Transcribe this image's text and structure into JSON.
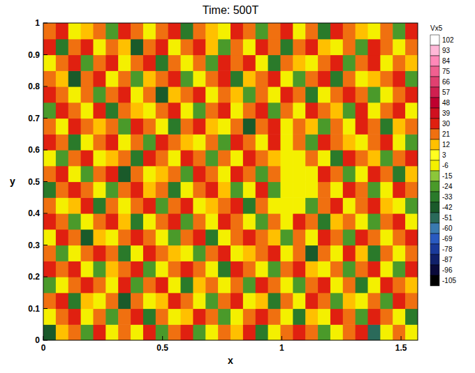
{
  "chart_data": {
    "type": "heatmap",
    "title": "Time: 500T",
    "x_label": "x",
    "y_label": "y",
    "xlim": [
      0,
      1.57
    ],
    "ylim": [
      0,
      1
    ],
    "xticks": [
      0,
      0.5,
      1,
      1.5
    ],
    "yticks": [
      0,
      0.1,
      0.2,
      0.3,
      0.4,
      0.5,
      0.6,
      0.7,
      0.8,
      0.9,
      1
    ],
    "colorbar": {
      "title": "Vx5",
      "ticks": [
        -105,
        -96,
        -87,
        -78,
        -69,
        -60,
        -51,
        -42,
        -33,
        -24,
        -15,
        -6,
        3,
        12,
        21,
        30,
        39,
        48,
        57,
        66,
        75,
        84,
        93,
        102
      ],
      "colors": [
        "#000000",
        "#0a0a3a",
        "#10206a",
        "#1a3a9a",
        "#2a5ac0",
        "#3a7ab0",
        "#2a6a5a",
        "#1a5a2a",
        "#2a7a2a",
        "#4a9a2a",
        "#8cc63a",
        "#f4f000",
        "#ffff20",
        "#ffc000",
        "#f07010",
        "#e02010",
        "#d01020",
        "#c00030",
        "#d02050",
        "#e04070",
        "#f06090",
        "#ff88b8",
        "#ffb8d8",
        "#ffffff"
      ]
    },
    "cells": [
      [
        -40,
        15,
        25,
        -18,
        33,
        0,
        25,
        0,
        33,
        -18,
        25,
        33,
        -18,
        0,
        25,
        15,
        33,
        -28,
        0,
        25,
        33,
        25,
        -18,
        0,
        25,
        33,
        -50,
        0,
        25,
        0
      ],
      [
        0,
        25,
        33,
        0,
        25,
        -18,
        25,
        33,
        -28,
        25,
        0,
        15,
        33,
        25,
        -18,
        0,
        25,
        33,
        25,
        0,
        -28,
        15,
        0,
        33,
        25,
        -18,
        33,
        25,
        0,
        -28
      ],
      [
        25,
        33,
        -28,
        15,
        0,
        25,
        -40,
        25,
        0,
        15,
        33,
        25,
        0,
        -18,
        25,
        33,
        0,
        15,
        -28,
        25,
        0,
        33,
        25,
        -18,
        15,
        0,
        25,
        -18,
        33,
        25
      ],
      [
        -18,
        0,
        25,
        33,
        25,
        0,
        33,
        -18,
        25,
        33,
        0,
        -28,
        15,
        25,
        0,
        25,
        -18,
        33,
        25,
        0,
        -18,
        25,
        33,
        0,
        25,
        -28,
        0,
        33,
        25,
        15
      ],
      [
        33,
        25,
        33,
        0,
        -18,
        15,
        25,
        33,
        -18,
        0,
        25,
        33,
        25,
        0,
        -28,
        33,
        25,
        0,
        -18,
        25,
        33,
        15,
        0,
        25,
        -18,
        25,
        33,
        0,
        -18,
        33
      ],
      [
        25,
        -18,
        0,
        25,
        33,
        25,
        -28,
        0,
        33,
        25,
        15,
        0,
        -18,
        25,
        33,
        0,
        15,
        25,
        33,
        0,
        25,
        -40,
        25,
        0,
        33,
        15,
        -28,
        25,
        0,
        25
      ],
      [
        0,
        33,
        25,
        -40,
        15,
        0,
        25,
        33,
        25,
        0,
        -18,
        25,
        33,
        -28,
        0,
        25,
        33,
        25,
        15,
        -18,
        25,
        0,
        33,
        25,
        -18,
        33,
        25,
        0,
        25,
        33
      ],
      [
        33,
        25,
        -18,
        0,
        25,
        33,
        15,
        -28,
        0,
        25,
        33,
        -18,
        25,
        0,
        33,
        25,
        0,
        -18,
        25,
        0,
        33,
        25,
        -28,
        15,
        25,
        0,
        -18,
        25,
        33,
        0
      ],
      [
        25,
        0,
        15,
        33,
        -28,
        25,
        0,
        25,
        33,
        -18,
        25,
        33,
        0,
        15,
        25,
        33,
        -28,
        25,
        0,
        0,
        0,
        -18,
        25,
        33,
        0,
        25,
        33,
        15,
        0,
        -18
      ],
      [
        -28,
        25,
        33,
        25,
        0,
        -18,
        25,
        33,
        15,
        25,
        -28,
        0,
        25,
        33,
        15,
        -18,
        0,
        33,
        -18,
        0,
        0,
        0,
        25,
        0,
        33,
        25,
        -18,
        0,
        33,
        25
      ],
      [
        25,
        33,
        0,
        -18,
        25,
        33,
        -40,
        25,
        0,
        15,
        25,
        -18,
        33,
        25,
        0,
        33,
        25,
        -18,
        25,
        0,
        0,
        0,
        33,
        25,
        -18,
        0,
        33,
        25,
        -28,
        15
      ],
      [
        0,
        -18,
        25,
        33,
        0,
        15,
        25,
        -28,
        33,
        25,
        0,
        33,
        25,
        -18,
        25,
        0,
        33,
        25,
        15,
        0,
        0,
        25,
        0,
        -28,
        33,
        25,
        15,
        -18,
        25,
        33
      ],
      [
        33,
        25,
        -28,
        0,
        25,
        33,
        0,
        25,
        -18,
        33,
        25,
        15,
        0,
        25,
        -18,
        33,
        25,
        0,
        33,
        0,
        25,
        -18,
        33,
        25,
        15,
        0,
        25,
        33,
        0,
        -18
      ],
      [
        25,
        0,
        33,
        25,
        15,
        25,
        -18,
        33,
        25,
        0,
        -28,
        25,
        33,
        15,
        0,
        25,
        -40,
        25,
        33,
        0,
        25,
        15,
        -18,
        25,
        0,
        33,
        25,
        -28,
        15,
        25
      ],
      [
        -18,
        33,
        25,
        0,
        33,
        -28,
        25,
        15,
        0,
        25,
        33,
        0,
        -18,
        25,
        33,
        0,
        25,
        33,
        -18,
        25,
        0,
        33,
        25,
        15,
        -18,
        33,
        0,
        25,
        33,
        0
      ],
      [
        33,
        25,
        0,
        25,
        -18,
        25,
        33,
        0,
        25,
        -40,
        15,
        25,
        33,
        0,
        25,
        15,
        -18,
        25,
        0,
        33,
        25,
        -28,
        0,
        25,
        33,
        25,
        -18,
        0,
        25,
        33
      ],
      [
        25,
        15,
        -40,
        25,
        33,
        0,
        25,
        -18,
        15,
        25,
        33,
        -18,
        0,
        25,
        33,
        -28,
        15,
        25,
        33,
        0,
        -18,
        25,
        33,
        -28,
        25,
        0,
        15,
        25,
        33,
        -18
      ],
      [
        0,
        25,
        33,
        -18,
        25,
        33,
        0,
        25,
        33,
        -28,
        25,
        0,
        25,
        -18,
        33,
        25,
        33,
        0,
        -28,
        25,
        15,
        0,
        25,
        33,
        -18,
        25,
        33,
        0,
        25,
        15
      ],
      [
        33,
        -28,
        25,
        33,
        0,
        25,
        15,
        -40,
        25,
        33,
        0,
        25,
        33,
        15,
        -18,
        25,
        0,
        33,
        25,
        -28,
        25,
        33,
        15,
        0,
        25,
        -18,
        33,
        25,
        0,
        25
      ],
      [
        25,
        33,
        0,
        15,
        25,
        -18,
        33,
        25,
        0,
        25,
        33,
        -28,
        25,
        15,
        0,
        33,
        25,
        -18,
        25,
        33,
        0,
        25,
        -28,
        33,
        25,
        15,
        0,
        25,
        -18,
        33
      ]
    ]
  }
}
